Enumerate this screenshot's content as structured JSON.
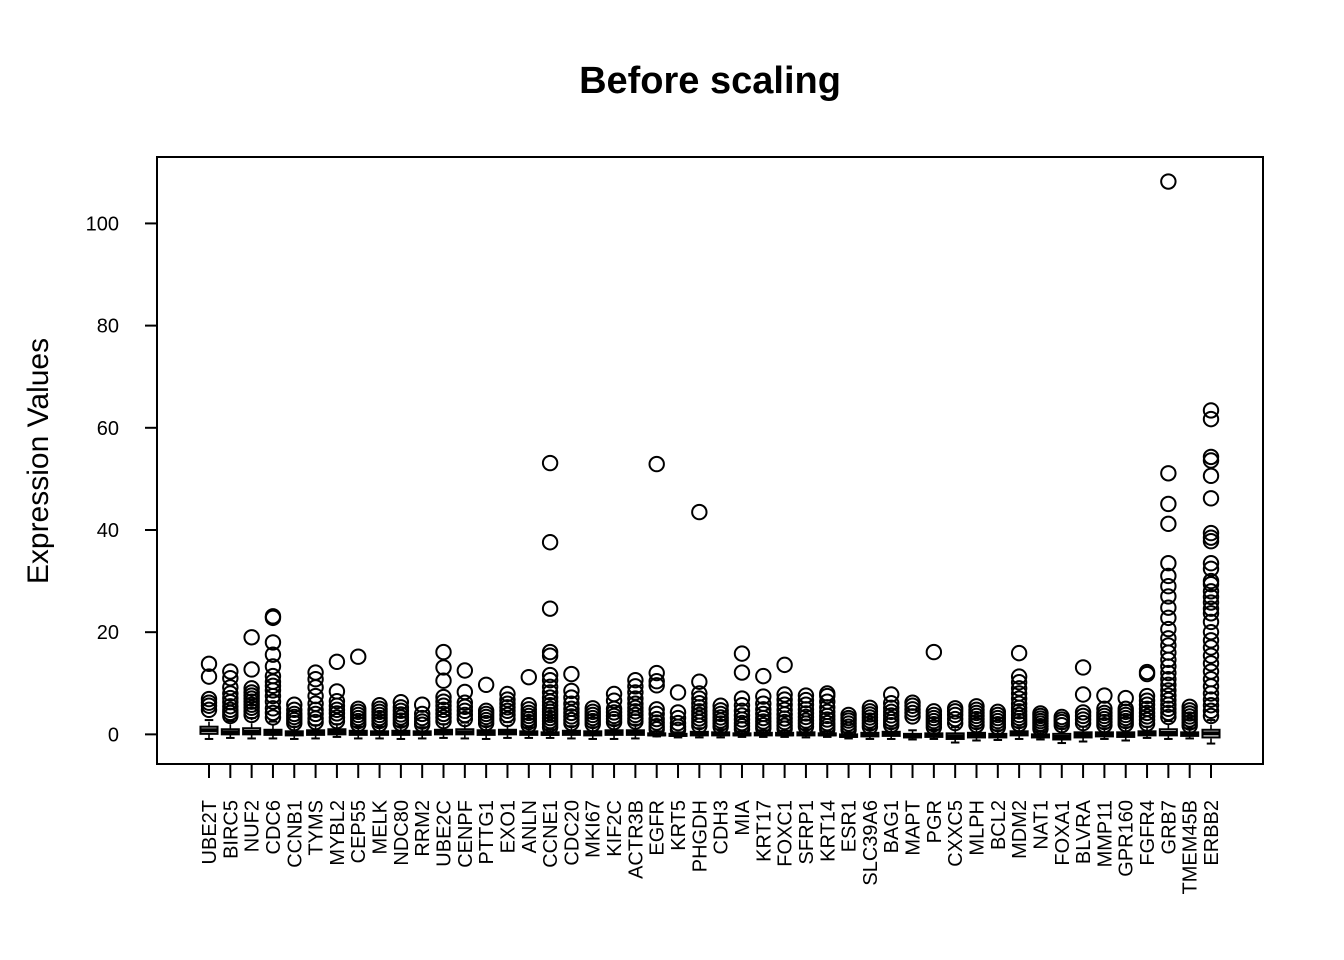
{
  "chart_data": {
    "type": "box",
    "title": "Before scaling",
    "xlabel": "",
    "ylabel": "Expression Values",
    "ylim": [
      -5.8,
      113
    ],
    "yticks": [
      0,
      20,
      40,
      60,
      80,
      100
    ],
    "grid": false,
    "legend": "none",
    "categories": [
      "UBE2T",
      "BIRC5",
      "NUF2",
      "CDC6",
      "CCNB1",
      "TYMS",
      "MYBL2",
      "CEP55",
      "MELK",
      "NDC80",
      "RRM2",
      "UBE2C",
      "CENPF",
      "PTTG1",
      "EXO1",
      "ANLN",
      "CCNE1",
      "CDC20",
      "MKI67",
      "KIF2C",
      "ACTR3B",
      "EGFR",
      "KRT5",
      "PHGDH",
      "CDH3",
      "MIA",
      "KRT17",
      "FOXC1",
      "SFRP1",
      "KRT14",
      "ESR1",
      "SLC39A6",
      "BAG1",
      "MAPT",
      "PGR",
      "CXXC5",
      "MLPH",
      "BCL2",
      "MDM2",
      "NAT1",
      "FOXA1",
      "BLVRA",
      "MMP11",
      "GPR160",
      "FGFR4",
      "GRB7",
      "TMEM45B",
      "ERBB2"
    ],
    "series": [
      {
        "stats": [
          -0.9,
          0.1,
          0.8,
          1.5,
          2.8
        ],
        "outliers": [
          4.8,
          5.6,
          6.2,
          6.9,
          11.3,
          13.8
        ]
      },
      {
        "stats": [
          -0.7,
          0.0,
          0.4,
          1.0,
          2.6
        ],
        "outliers": [
          3.6,
          4.2,
          4.8,
          5.5,
          6.3,
          7.1,
          8.0,
          9.2,
          11.0,
          12.3
        ]
      },
      {
        "stats": [
          -0.8,
          0.0,
          0.5,
          1.2,
          3.2
        ],
        "outliers": [
          3.8,
          4.5,
          5.2,
          5.8,
          6.4,
          7.0,
          7.6,
          8.2,
          9.0,
          12.7,
          19.0
        ]
      },
      {
        "stats": [
          -0.8,
          -0.1,
          0.4,
          0.9,
          2.5
        ],
        "outliers": [
          3.3,
          4.2,
          5.1,
          6.4,
          7.5,
          8.6,
          9.5,
          10.3,
          11.4,
          13.3,
          15.6,
          18.0,
          22.8,
          23.1
        ]
      },
      {
        "stats": [
          -0.9,
          -0.2,
          0.2,
          0.6,
          1.5
        ],
        "outliers": [
          2.2,
          2.8,
          3.4,
          4.0,
          4.8,
          5.8
        ]
      },
      {
        "stats": [
          -0.8,
          -0.1,
          0.3,
          0.8,
          1.8
        ],
        "outliers": [
          2.4,
          3.1,
          4.0,
          4.8,
          6.0,
          7.5,
          9.2,
          10.8,
          12.1
        ]
      },
      {
        "stats": [
          -0.5,
          0.0,
          0.5,
          1.0,
          2.0
        ],
        "outliers": [
          2.6,
          3.3,
          4.1,
          4.8,
          5.6,
          6.5,
          8.4,
          14.2
        ]
      },
      {
        "stats": [
          -0.8,
          -0.1,
          0.2,
          0.7,
          1.5
        ],
        "outliers": [
          2.0,
          2.6,
          3.2,
          3.8,
          4.4,
          5.0,
          15.2
        ]
      },
      {
        "stats": [
          -0.8,
          -0.1,
          0.2,
          0.6,
          1.5
        ],
        "outliers": [
          2.0,
          2.6,
          3.2,
          3.8,
          4.4,
          5.0,
          5.7
        ]
      },
      {
        "stats": [
          -0.9,
          -0.1,
          0.3,
          0.7,
          1.6
        ],
        "outliers": [
          2.1,
          2.7,
          3.3,
          3.9,
          4.6,
          5.3,
          6.3
        ]
      },
      {
        "stats": [
          -0.8,
          -0.1,
          0.2,
          0.6,
          1.4
        ],
        "outliers": [
          1.9,
          2.5,
          3.2,
          4.0,
          5.8
        ]
      },
      {
        "stats": [
          -0.7,
          0.0,
          0.4,
          0.9,
          2.0
        ],
        "outliers": [
          2.6,
          3.3,
          4.0,
          4.8,
          5.6,
          6.4,
          7.3,
          10.5,
          13.1,
          16.1
        ]
      },
      {
        "stats": [
          -0.8,
          0.0,
          0.4,
          1.0,
          2.3
        ],
        "outliers": [
          3.0,
          3.8,
          4.6,
          5.4,
          6.2,
          8.3,
          12.5
        ]
      },
      {
        "stats": [
          -0.9,
          -0.1,
          0.3,
          0.8,
          1.6
        ],
        "outliers": [
          2.2,
          2.8,
          3.4,
          4.0,
          4.6,
          9.7
        ]
      },
      {
        "stats": [
          -0.7,
          0.0,
          0.4,
          0.9,
          2.4
        ],
        "outliers": [
          3.0,
          3.8,
          4.6,
          5.3,
          6.0,
          6.8,
          7.9
        ]
      },
      {
        "stats": [
          -0.7,
          -0.1,
          0.3,
          0.6,
          1.4
        ],
        "outliers": [
          1.8,
          2.4,
          3.0,
          3.6,
          4.2,
          4.9,
          5.7,
          11.2
        ]
      },
      {
        "stats": [
          -0.7,
          -0.1,
          0.1,
          0.4,
          1.0
        ],
        "outliers": [
          1.4,
          2.0,
          2.6,
          3.2,
          3.8,
          4.4,
          5.0,
          5.7,
          6.4,
          7.2,
          8.2,
          9.3,
          10.6,
          11.6,
          15.4,
          16.1,
          24.6,
          37.6,
          53.1
        ]
      },
      {
        "stats": [
          -0.8,
          -0.1,
          0.2,
          0.7,
          1.6
        ],
        "outliers": [
          2.2,
          2.8,
          3.5,
          4.2,
          5.0,
          6.0,
          7.2,
          8.5,
          11.8
        ]
      },
      {
        "stats": [
          -0.9,
          -0.2,
          0.2,
          0.6,
          1.4
        ],
        "outliers": [
          2.0,
          2.6,
          3.2,
          3.8,
          4.4,
          5.1
        ]
      },
      {
        "stats": [
          -0.9,
          -0.1,
          0.3,
          0.8,
          1.8
        ],
        "outliers": [
          2.4,
          3.0,
          3.6,
          4.3,
          5.0,
          6.6,
          7.9
        ]
      },
      {
        "stats": [
          -0.8,
          -0.1,
          0.3,
          0.8,
          1.9
        ],
        "outliers": [
          2.5,
          3.1,
          3.8,
          4.5,
          5.2,
          6.0,
          7.0,
          8.2,
          9.4,
          10.6
        ]
      },
      {
        "stats": [
          -0.4,
          -0.2,
          0.0,
          0.2,
          0.6
        ],
        "outliers": [
          1.0,
          1.6,
          2.3,
          3.0,
          4.0,
          4.9,
          9.6,
          10.4,
          12.0,
          52.9
        ]
      },
      {
        "stats": [
          -0.6,
          -0.3,
          -0.1,
          0.1,
          0.4
        ],
        "outliers": [
          0.9,
          1.5,
          2.2,
          3.2,
          4.3,
          8.2
        ]
      },
      {
        "stats": [
          -0.6,
          -0.2,
          0.1,
          0.5,
          1.2
        ],
        "outliers": [
          1.7,
          2.4,
          3.1,
          3.8,
          4.5,
          5.3,
          6.1,
          7.0,
          8.0,
          10.3,
          43.5
        ]
      },
      {
        "stats": [
          -0.6,
          -0.2,
          0.1,
          0.4,
          1.0
        ],
        "outliers": [
          1.5,
          2.1,
          2.7,
          3.3,
          4.0,
          4.7,
          5.6
        ]
      },
      {
        "stats": [
          -0.5,
          -0.2,
          0.0,
          0.2,
          0.6
        ],
        "outliers": [
          1.0,
          1.6,
          2.2,
          2.9,
          3.7,
          4.6,
          5.7,
          7.0,
          12.1,
          15.8
        ]
      },
      {
        "stats": [
          -0.5,
          -0.2,
          0.1,
          0.3,
          0.8
        ],
        "outliers": [
          1.2,
          1.8,
          2.5,
          3.2,
          4.0,
          4.9,
          6.0,
          7.4,
          11.4
        ]
      },
      {
        "stats": [
          -0.5,
          -0.2,
          0.0,
          0.3,
          0.7
        ],
        "outliers": [
          1.1,
          1.7,
          2.4,
          3.1,
          3.9,
          4.8,
          5.8,
          6.8,
          7.8,
          13.6
        ]
      },
      {
        "stats": [
          -0.6,
          -0.2,
          0.1,
          0.4,
          1.0
        ],
        "outliers": [
          1.5,
          2.1,
          2.7,
          3.4,
          4.1,
          4.9,
          5.8,
          6.7,
          7.6
        ]
      },
      {
        "stats": [
          -0.5,
          -0.2,
          0.0,
          0.2,
          0.6
        ],
        "outliers": [
          1.0,
          1.6,
          2.2,
          2.9,
          3.6,
          4.4,
          5.3,
          6.4,
          7.5,
          8.0
        ]
      },
      {
        "stats": [
          -0.8,
          -0.5,
          -0.3,
          0.0,
          0.4
        ],
        "outliers": [
          0.9,
          1.5,
          2.1,
          2.7,
          3.2,
          3.8
        ]
      },
      {
        "stats": [
          -0.9,
          -0.4,
          -0.1,
          0.3,
          1.0
        ],
        "outliers": [
          1.5,
          2.1,
          2.7,
          3.3,
          3.9,
          4.5,
          5.2
        ]
      },
      {
        "stats": [
          -0.9,
          -0.3,
          0.0,
          0.5,
          1.2
        ],
        "outliers": [
          1.8,
          2.4,
          3.0,
          3.7,
          4.4,
          5.2,
          6.1,
          7.8
        ]
      },
      {
        "stats": [
          -1.0,
          -0.6,
          -0.3,
          0.1,
          0.8
        ],
        "outliers": [
          3.5,
          4.2,
          4.9,
          5.6,
          6.2
        ]
      },
      {
        "stats": [
          -0.9,
          -0.5,
          -0.2,
          0.2,
          0.9
        ],
        "outliers": [
          1.4,
          2.0,
          2.6,
          3.2,
          3.8,
          4.5,
          16.1
        ]
      },
      {
        "stats": [
          -1.6,
          -0.9,
          -0.4,
          0.2,
          1.4
        ],
        "outliers": [
          2.2,
          3.0,
          3.8,
          4.5,
          5.1
        ]
      },
      {
        "stats": [
          -1.2,
          -0.6,
          -0.2,
          0.3,
          1.2
        ],
        "outliers": [
          1.8,
          2.4,
          3.0,
          3.6,
          4.2,
          4.8,
          5.5
        ]
      },
      {
        "stats": [
          -1.1,
          -0.6,
          -0.3,
          0.1,
          0.8
        ],
        "outliers": [
          1.4,
          2.0,
          2.6,
          3.2,
          3.8,
          4.4
        ]
      },
      {
        "stats": [
          -0.9,
          -0.2,
          0.2,
          0.6,
          1.4
        ],
        "outliers": [
          2.0,
          2.6,
          3.2,
          3.8,
          4.5,
          5.2,
          6.0,
          7.0,
          8.0,
          9.0,
          10.2,
          11.3,
          15.9
        ]
      },
      {
        "stats": [
          -1.0,
          -0.6,
          -0.3,
          0.0,
          0.6
        ],
        "outliers": [
          1.1,
          1.6,
          2.1,
          2.6,
          3.1,
          3.6,
          4.1
        ]
      },
      {
        "stats": [
          -1.7,
          -1.0,
          -0.5,
          0.1,
          1.1
        ],
        "outliers": [
          1.8,
          2.4,
          2.9,
          3.4
        ]
      },
      {
        "stats": [
          -1.4,
          -0.6,
          -0.1,
          0.4,
          1.5
        ],
        "outliers": [
          2.2,
          2.9,
          3.6,
          4.3,
          7.8,
          13.1
        ]
      },
      {
        "stats": [
          -0.9,
          -0.4,
          -0.1,
          0.4,
          1.2
        ],
        "outliers": [
          1.8,
          2.4,
          3.0,
          3.6,
          4.2,
          5.0,
          7.6
        ]
      },
      {
        "stats": [
          -1.2,
          -0.5,
          -0.1,
          0.4,
          1.4
        ],
        "outliers": [
          2.0,
          2.6,
          3.2,
          3.8,
          4.4,
          5.0,
          7.1
        ]
      },
      {
        "stats": [
          -0.7,
          -0.2,
          0.2,
          0.6,
          1.5
        ],
        "outliers": [
          2.1,
          2.8,
          3.5,
          4.2,
          5.0,
          5.8,
          6.6,
          7.5,
          11.8,
          12.2
        ]
      },
      {
        "stats": [
          -0.9,
          -0.2,
          0.3,
          1.0,
          2.6
        ],
        "outliers": [
          3.4,
          4.2,
          5.0,
          5.8,
          6.7,
          7.6,
          8.6,
          9.7,
          10.8,
          12.0,
          13.3,
          14.6,
          16.0,
          17.4,
          18.8,
          20.6,
          22.8,
          24.8,
          27.0,
          29.0,
          31.0,
          33.5,
          41.2,
          45.1,
          51.1,
          108.2
        ]
      },
      {
        "stats": [
          -0.8,
          -0.3,
          0.0,
          0.4,
          1.2
        ],
        "outliers": [
          1.7,
          2.3,
          2.9,
          3.5,
          4.1,
          4.7,
          5.4
        ]
      },
      {
        "stats": [
          -1.8,
          -0.6,
          0.2,
          0.9,
          2.8
        ],
        "outliers": [
          3.6,
          4.6,
          5.7,
          6.8,
          8.0,
          9.4,
          10.8,
          12.3,
          13.9,
          15.4,
          17.0,
          18.4,
          20.0,
          22.0,
          23.7,
          24.6,
          25.8,
          26.9,
          28.0,
          29.4,
          30.0,
          32.4,
          33.5,
          37.8,
          38.5,
          39.4,
          46.2,
          50.6,
          53.6,
          54.3,
          61.7,
          63.4
        ]
      }
    ]
  }
}
